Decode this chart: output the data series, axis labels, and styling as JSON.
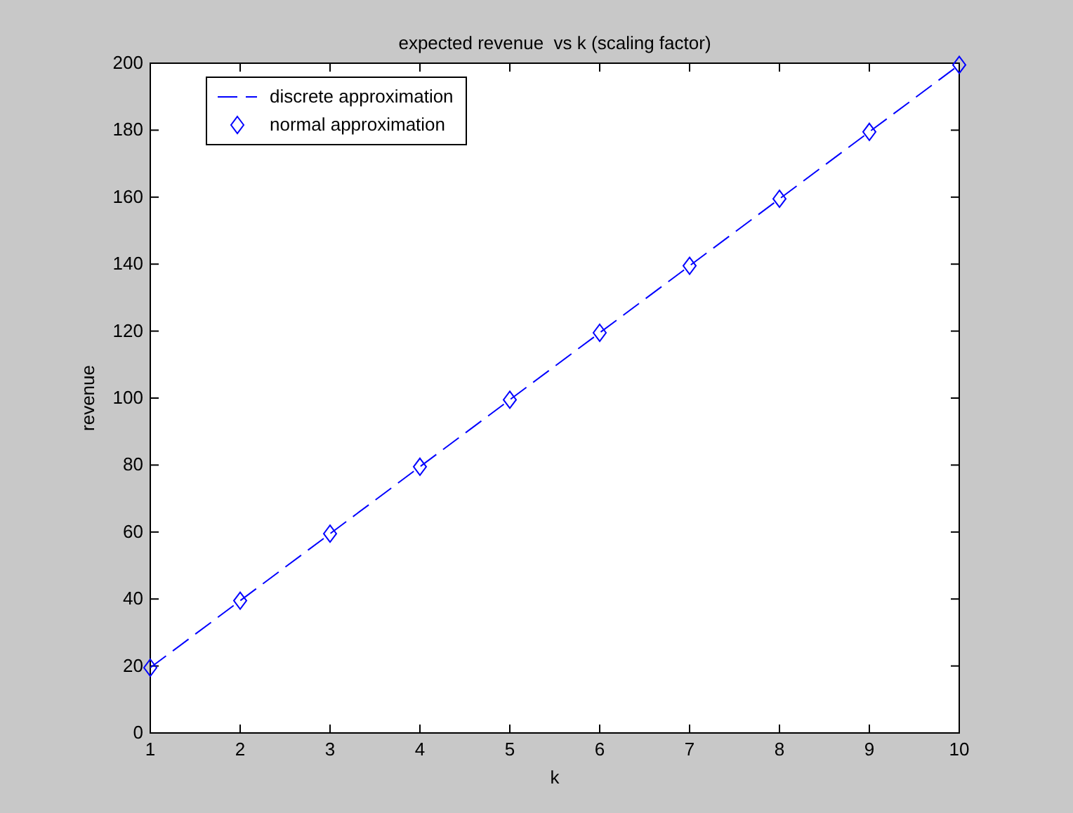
{
  "chart_data": {
    "type": "line",
    "title": "expected revenue  vs k (scaling factor)",
    "xlabel": "k",
    "ylabel": "revenue",
    "x": [
      1,
      2,
      3,
      4,
      5,
      6,
      7,
      8,
      9,
      10
    ],
    "series": [
      {
        "name": "discrete approximation",
        "type": "line",
        "color": "#0000ff",
        "line_style": "dashed",
        "marker": "none",
        "values": [
          19.5,
          39.5,
          59.5,
          79.5,
          99.5,
          119.5,
          139.5,
          159.5,
          179.5,
          199.5
        ]
      },
      {
        "name": "normal approximation",
        "type": "scatter",
        "color": "#0000ff",
        "marker": "diamond",
        "values": [
          19.5,
          39.5,
          59.5,
          79.5,
          99.5,
          119.5,
          139.5,
          159.5,
          179.5,
          199.5
        ]
      }
    ],
    "xlim": [
      1,
      10
    ],
    "xticks": [
      1,
      2,
      3,
      4,
      5,
      6,
      7,
      8,
      9,
      10
    ],
    "ylim": [
      0,
      200
    ],
    "yticks": [
      0,
      20,
      40,
      60,
      80,
      100,
      120,
      140,
      160,
      180,
      200
    ],
    "grid": false,
    "legend": "top left"
  }
}
